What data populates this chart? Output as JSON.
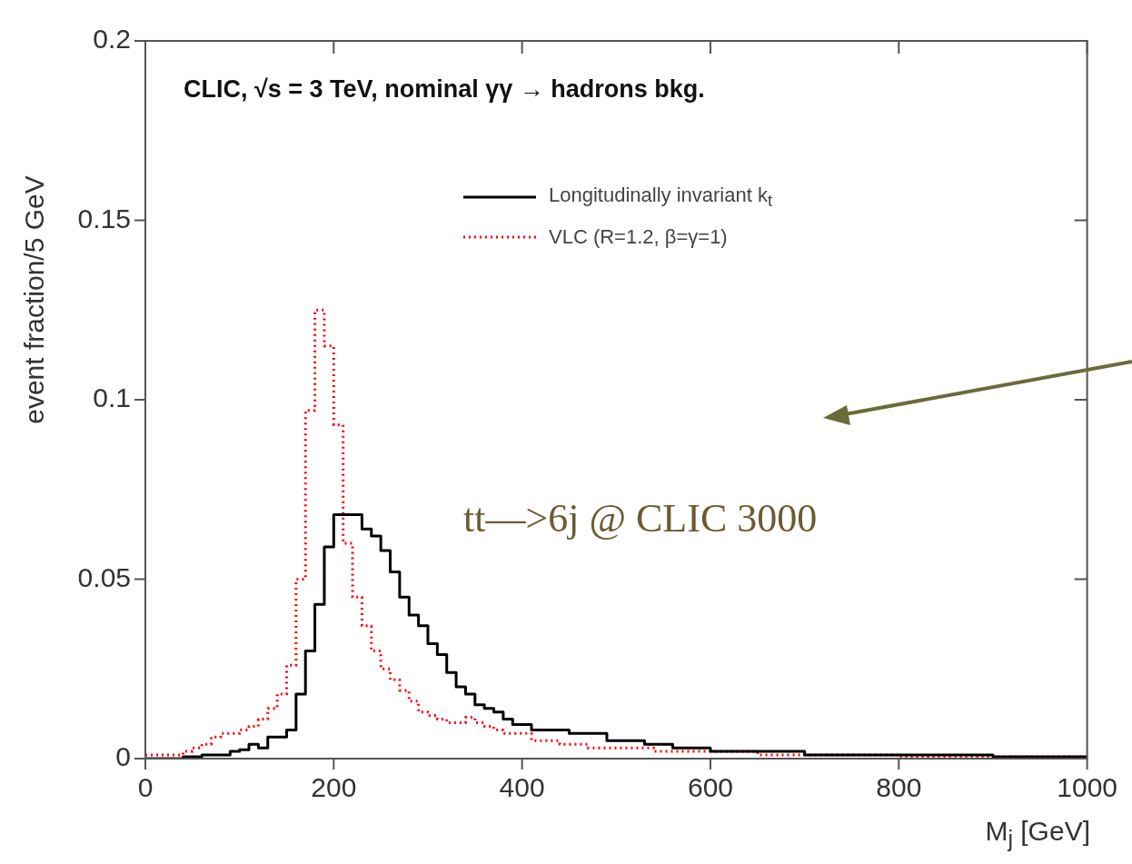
{
  "chart_data": {
    "type": "histogram",
    "xlabel": "M$_{j}$ [GeV]",
    "ylabel": "event fraction/5 GeV",
    "annotations": [
      "CLIC, √s = 3 TeV, nominal γγ → hadrons bkg.",
      "tt—>6j @ CLIC 3000"
    ],
    "bins": [
      0,
      10,
      20,
      30,
      40,
      50,
      60,
      70,
      80,
      90,
      100,
      110,
      120,
      130,
      140,
      150,
      160,
      170,
      180,
      190,
      200,
      210,
      220,
      230,
      240,
      250,
      260,
      270,
      280,
      290,
      300,
      310,
      320,
      330,
      340,
      350,
      360,
      370,
      380,
      390,
      400,
      410,
      420,
      430,
      440,
      450,
      460,
      470,
      480,
      490,
      500,
      510,
      520,
      530,
      540,
      550,
      560,
      570,
      580,
      590,
      600,
      610,
      620,
      630,
      640,
      650,
      660,
      670,
      680,
      690,
      700,
      710,
      720,
      730,
      740,
      750,
      760,
      770,
      780,
      790,
      800,
      810,
      820,
      830,
      840,
      850,
      860,
      870,
      880,
      890,
      900,
      910,
      920,
      930,
      940,
      950,
      960,
      970,
      980,
      990,
      1000
    ],
    "series": [
      {
        "name": "Longitudinally invariant k$_{t}$",
        "color": "#000000",
        "line_style": "solid",
        "values": [
          0,
          0,
          0,
          0,
          0.0005,
          0.0005,
          0.001,
          0.001,
          0.001,
          0.002,
          0.0025,
          0.004,
          0.003,
          0.006,
          0.006,
          0.008,
          0.018,
          0.03,
          0.043,
          0.059,
          0.068,
          0.068,
          0.068,
          0.064,
          0.062,
          0.058,
          0.052,
          0.045,
          0.04,
          0.037,
          0.032,
          0.029,
          0.024,
          0.02,
          0.018,
          0.015,
          0.014,
          0.013,
          0.011,
          0.0095,
          0.0095,
          0.008,
          0.008,
          0.008,
          0.008,
          0.007,
          0.007,
          0.007,
          0.007,
          0.005,
          0.005,
          0.005,
          0.005,
          0.004,
          0.004,
          0.004,
          0.003,
          0.003,
          0.003,
          0.003,
          0.002,
          0.002,
          0.002,
          0.002,
          0.002,
          0.002,
          0.002,
          0.002,
          0.002,
          0.002,
          0.001,
          0.001,
          0.001,
          0.001,
          0.001,
          0.001,
          0.001,
          0.001,
          0.001,
          0.001,
          0.001,
          0.001,
          0.001,
          0.001,
          0.001,
          0.001,
          0.001,
          0.001,
          0.001,
          0.001,
          0.0005,
          0.0005,
          0.0005,
          0.0005,
          0.0005,
          0.0005,
          0.0005,
          0.0005,
          0.0005,
          0.0005
        ]
      },
      {
        "name": "VLC (R=1.2, β=γ=1)",
        "color": "#ff0000",
        "line_style": "dotted",
        "values": [
          0.001,
          0.001,
          0.001,
          0.001,
          0.002,
          0.003,
          0.004,
          0.006,
          0.007,
          0.007,
          0.008,
          0.009,
          0.011,
          0.014,
          0.018,
          0.026,
          0.05,
          0.097,
          0.125,
          0.115,
          0.093,
          0.06,
          0.045,
          0.037,
          0.03,
          0.025,
          0.022,
          0.019,
          0.016,
          0.013,
          0.012,
          0.011,
          0.01,
          0.01,
          0.0115,
          0.01,
          0.009,
          0.008,
          0.007,
          0.007,
          0.007,
          0.005,
          0.005,
          0.005,
          0.004,
          0.004,
          0.004,
          0.003,
          0.003,
          0.003,
          0.003,
          0.003,
          0.003,
          0.003,
          0.002,
          0.002,
          0.002,
          0.002,
          0.002,
          0.002,
          0.002,
          0.002,
          0.002,
          0.002,
          0.002,
          0.001,
          0.001,
          0.001,
          0.001,
          0.001,
          0.001,
          0.001,
          0.001,
          0.001,
          0.001,
          0.001,
          0.001,
          0.001,
          0.001,
          0.001,
          0.0005,
          0.0005,
          0.0005,
          0.0005,
          0.0005,
          0.0005,
          0.0005,
          0.0005,
          0.0005,
          0.0005,
          0.0005,
          0.0005,
          0.0005,
          0.0005,
          0.0005,
          0.0005,
          0.0005,
          0.0005,
          0.0005,
          0.0005
        ]
      }
    ],
    "xlim": [
      0,
      1000
    ],
    "xticks": [
      0,
      200,
      400,
      600,
      800,
      1000
    ],
    "ylim": [
      0,
      0.2
    ],
    "yticks": [
      0,
      0.05,
      0.1,
      0.15,
      0.2
    ],
    "grid": false,
    "legend": "top right",
    "marker": "none"
  }
}
